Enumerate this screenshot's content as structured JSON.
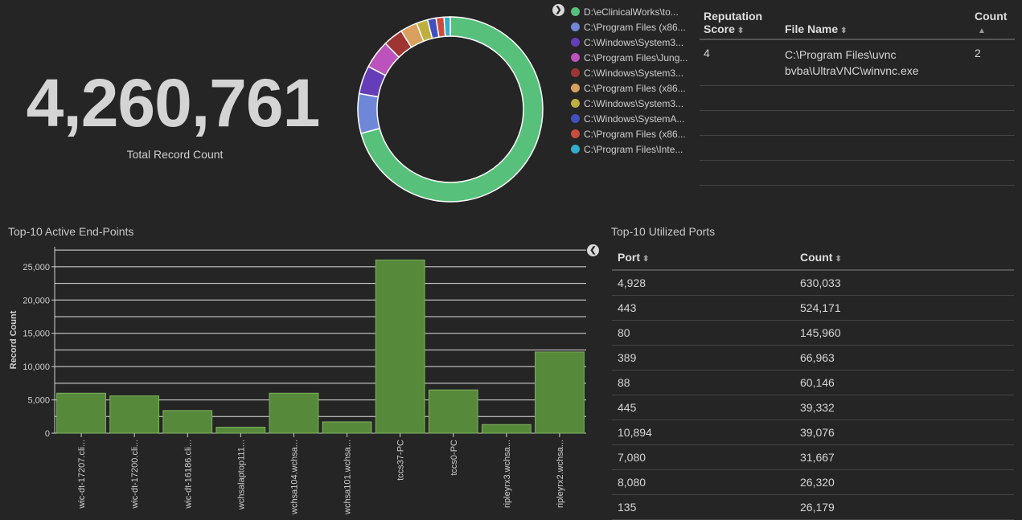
{
  "metric": {
    "value": "4,260,761",
    "label": "Total Record Count"
  },
  "donut": {
    "type": "pie",
    "legend_placement": "right",
    "slices": [
      {
        "label": "D:\\eClinicalWorks\\to...",
        "value": 71.5,
        "color": "#57c17b"
      },
      {
        "label": "C:\\Program Files (x86...",
        "value": 7.0,
        "color": "#6f87d8"
      },
      {
        "label": "C:\\Windows\\System3...",
        "value": 5.0,
        "color": "#663db8"
      },
      {
        "label": "C:\\Program Files\\Jung...",
        "value": 5.0,
        "color": "#bc52bc"
      },
      {
        "label": "C:\\Windows\\System3...",
        "value": 3.5,
        "color": "#9e3533"
      },
      {
        "label": "C:\\Program Files (x86...",
        "value": 3.0,
        "color": "#daa05d"
      },
      {
        "label": "C:\\Windows\\System3...",
        "value": 2.0,
        "color": "#bfaf40"
      },
      {
        "label": "C:\\Windows\\SystemA...",
        "value": 1.5,
        "color": "#4050bf"
      },
      {
        "label": "C:\\Program Files (x86...",
        "value": 1.4,
        "color": "#cc4c3c"
      },
      {
        "label": "C:\\Program Files\\Inte...",
        "value": 1.1,
        "color": "#33aecc"
      }
    ]
  },
  "legend_toggle": "❯",
  "reputation_table": {
    "headers": {
      "score": "Reputation Score",
      "file": "File Name",
      "count": "Count"
    },
    "sort_both": "⬍",
    "sort_up": "▲",
    "rows": [
      {
        "score": "4",
        "file": "C:\\Program Files\\uvnc bvba\\UltraVNC\\winvnc.exe",
        "count": "2"
      }
    ]
  },
  "endpoints": {
    "title": "Top-10 Active End-Points",
    "toggle": "❮"
  },
  "chart_data": {
    "type": "bar",
    "categories": [
      "wic-dt-17207.cli...",
      "wic-dt-17200.cli...",
      "wic-dt-16186.cli...",
      "wchsalaptop111...",
      "wchsa104.wchsa...",
      "wchsa101.wchsa...",
      "tccs37-PC",
      "tccs0-PC",
      "ripleyrx3.wchsa...",
      "ripleyrx2.wchsa..."
    ],
    "values": [
      6000,
      5600,
      3400,
      900,
      6000,
      1700,
      26000,
      6500,
      1300,
      12200
    ],
    "ylabel": "Record Count",
    "xlabel": "",
    "ylim": [
      0,
      28000
    ],
    "yticks": [
      0,
      5000,
      10000,
      15000,
      20000,
      25000
    ],
    "ytick_labels": [
      "0",
      "5,000",
      "10,000",
      "15,000",
      "20,000",
      "25,000"
    ],
    "grid": true,
    "bar_color": "#57893a"
  },
  "ports": {
    "title": "Top-10 Utilized Ports",
    "headers": {
      "port": "Port",
      "count": "Count"
    },
    "sort_both": "⬍",
    "rows": [
      {
        "port": "4,928",
        "count": "630,033"
      },
      {
        "port": "443",
        "count": "524,171"
      },
      {
        "port": "80",
        "count": "145,960"
      },
      {
        "port": "389",
        "count": "66,963"
      },
      {
        "port": "88",
        "count": "60,146"
      },
      {
        "port": "445",
        "count": "39,332"
      },
      {
        "port": "10,894",
        "count": "39,076"
      },
      {
        "port": "7,080",
        "count": "31,667"
      },
      {
        "port": "8,080",
        "count": "26,320"
      },
      {
        "port": "135",
        "count": "26,179"
      }
    ]
  }
}
